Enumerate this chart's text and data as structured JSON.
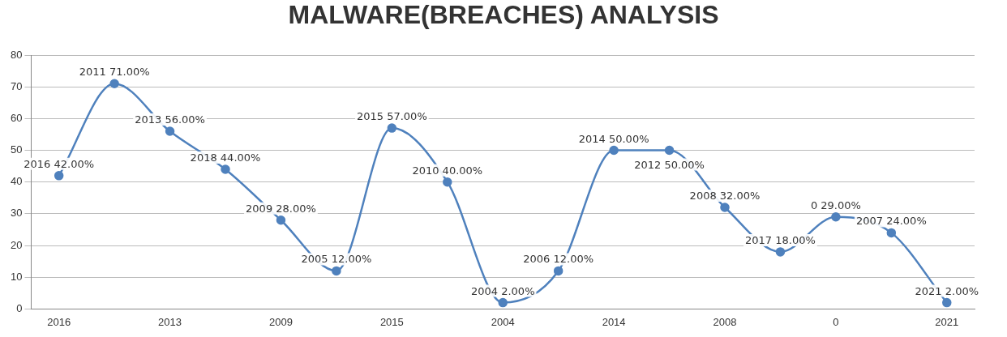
{
  "chart_data": {
    "type": "line",
    "title": "MALWARE(BREACHES) ANALYSIS",
    "categories": [
      "2016",
      null,
      "2013",
      null,
      "2009",
      null,
      "2015",
      null,
      "2004",
      null,
      "2014",
      null,
      "2008",
      null,
      "0",
      null,
      "2021"
    ],
    "series": [
      {
        "color": "#4f81bd",
        "values": [
          42,
          71,
          56,
          44,
          28,
          12,
          57,
          40,
          2,
          12,
          50,
          50,
          32,
          18,
          29,
          24,
          2
        ],
        "value_labels": [
          "2016 42.00%",
          "2011 71.00%",
          "2013 56.00%",
          "2018 44.00%",
          "2009 28.00%",
          "2005 12.00%",
          "2015 57.00%",
          "2010 40.00%",
          "2004 2.00%",
          "2006 12.00%",
          "2014 50.00%",
          "2012 50.00%",
          "2008 32.00%",
          "2017 18.00%",
          "0 29.00%",
          "2007 24.00%",
          "2021 2.00%"
        ]
      }
    ],
    "ylim": [
      0,
      80
    ],
    "yticks": [
      0,
      10,
      20,
      30,
      40,
      50,
      60,
      70,
      80
    ],
    "grid": "y",
    "marker": "circle",
    "line_style": "solid"
  }
}
